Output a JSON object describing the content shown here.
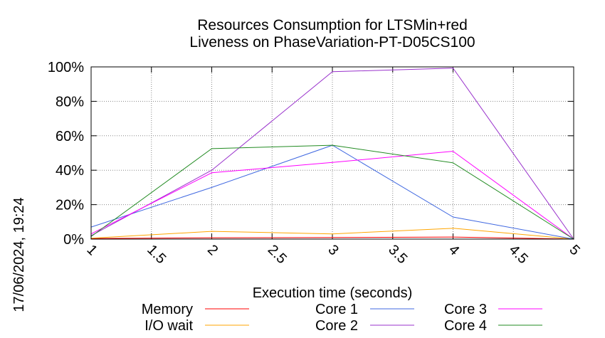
{
  "chart_data": {
    "type": "line",
    "title": "Resources Consumption for LTSMin+red",
    "subtitle": "Liveness on PhaseVariation-PT-D05CS100",
    "xlabel": "Execution time (seconds)",
    "ylabel": "",
    "side_label": "17/06/2024, 19:24",
    "xlim": [
      1,
      5
    ],
    "ylim": [
      0,
      100
    ],
    "x_ticks": [
      1,
      1.5,
      2,
      2.5,
      3,
      3.5,
      4,
      4.5,
      5
    ],
    "x_tick_labels": [
      "1",
      "1.5",
      "2",
      "2.5",
      "3",
      "3.5",
      "4",
      "4.5",
      "5"
    ],
    "y_ticks": [
      0,
      20,
      40,
      60,
      80,
      100
    ],
    "y_tick_labels": [
      "0%",
      "20%",
      "40%",
      "60%",
      "80%",
      "100%"
    ],
    "grid": true,
    "legend_position": "bottom",
    "series": [
      {
        "name": "Memory",
        "color": "#ff0000",
        "x": [
          1,
          2,
          3,
          4,
          5
        ],
        "y": [
          0.3,
          0.8,
          0.9,
          1.2,
          0
        ]
      },
      {
        "name": "I/O wait",
        "color": "#ffa500",
        "x": [
          1,
          2,
          3,
          4,
          5
        ],
        "y": [
          0.5,
          4.5,
          3,
          6.3,
          0
        ]
      },
      {
        "name": "Core 1",
        "color": "#4169e1",
        "x": [
          1,
          2,
          3,
          4,
          5
        ],
        "y": [
          7,
          30,
          54.5,
          12.8,
          0
        ]
      },
      {
        "name": "Core 2",
        "color": "#9932cc",
        "x": [
          1,
          2,
          3,
          4,
          5
        ],
        "y": [
          2,
          40,
          97.2,
          99.3,
          0
        ]
      },
      {
        "name": "Core 3",
        "color": "#ff00ff",
        "x": [
          1,
          2,
          3,
          4,
          5
        ],
        "y": [
          3,
          38.5,
          44.5,
          51,
          0
        ]
      },
      {
        "name": "Core 4",
        "color": "#228b22",
        "x": [
          1,
          2,
          3,
          4,
          5
        ],
        "y": [
          1.5,
          52.5,
          54.5,
          44.3,
          0
        ]
      }
    ]
  }
}
